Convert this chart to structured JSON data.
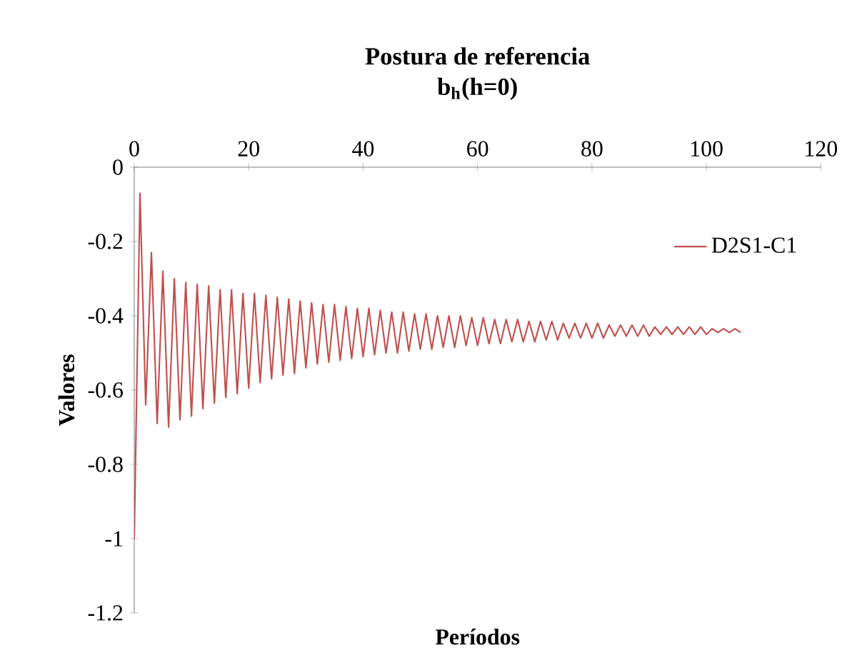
{
  "chart_data": {
    "type": "line",
    "title": "Postura de referencia",
    "subtitle": "b$_{h}$(h=0)",
    "xlabel": "Períodos",
    "ylabel": "Valores",
    "xlim": [
      0,
      120
    ],
    "xticks": [
      0,
      20,
      40,
      60,
      80,
      100,
      120
    ],
    "ylim": [
      -1.2,
      0
    ],
    "yticks": [
      -1.2,
      -1,
      -0.8,
      -0.6,
      -0.4,
      -0.2,
      0
    ],
    "legend": "top right",
    "x": [
      0,
      1,
      2,
      3,
      4,
      5,
      6,
      7,
      8,
      9,
      10,
      11,
      12,
      13,
      14,
      15,
      16,
      17,
      18,
      19,
      20,
      21,
      22,
      23,
      24,
      25,
      26,
      27,
      28,
      29,
      30,
      31,
      32,
      33,
      34,
      35,
      36,
      37,
      38,
      39,
      40,
      41,
      42,
      43,
      44,
      45,
      46,
      47,
      48,
      49,
      50,
      51,
      52,
      53,
      54,
      55,
      56,
      57,
      58,
      59,
      60,
      61,
      62,
      63,
      64,
      65,
      66,
      67,
      68,
      69,
      70,
      71,
      72,
      73,
      74,
      75,
      76,
      77,
      78,
      79,
      80,
      81,
      82,
      83,
      84,
      85,
      86,
      87,
      88,
      89,
      90,
      91,
      92,
      93,
      94,
      95,
      96,
      97,
      98,
      99,
      100,
      101,
      102,
      103,
      104,
      105,
      106
    ],
    "series": [
      {
        "name": "D2S1-C1",
        "color": "#c0504d",
        "values": [
          -1,
          -0.07,
          -0.64,
          -0.23,
          -0.69,
          -0.28,
          -0.7,
          -0.3,
          -0.68,
          -0.31,
          -0.67,
          -0.315,
          -0.65,
          -0.32,
          -0.635,
          -0.33,
          -0.62,
          -0.33,
          -0.61,
          -0.34,
          -0.595,
          -0.34,
          -0.58,
          -0.345,
          -0.57,
          -0.35,
          -0.56,
          -0.355,
          -0.555,
          -0.36,
          -0.54,
          -0.365,
          -0.53,
          -0.37,
          -0.525,
          -0.37,
          -0.52,
          -0.375,
          -0.515,
          -0.38,
          -0.51,
          -0.38,
          -0.505,
          -0.385,
          -0.5,
          -0.39,
          -0.5,
          -0.39,
          -0.495,
          -0.395,
          -0.49,
          -0.395,
          -0.49,
          -0.4,
          -0.485,
          -0.4,
          -0.485,
          -0.4,
          -0.48,
          -0.405,
          -0.48,
          -0.405,
          -0.475,
          -0.41,
          -0.475,
          -0.41,
          -0.47,
          -0.41,
          -0.47,
          -0.415,
          -0.47,
          -0.415,
          -0.465,
          -0.415,
          -0.465,
          -0.42,
          -0.46,
          -0.42,
          -0.46,
          -0.42,
          -0.46,
          -0.42,
          -0.46,
          -0.425,
          -0.455,
          -0.425,
          -0.455,
          -0.425,
          -0.455,
          -0.425,
          -0.455,
          -0.43,
          -0.45,
          -0.43,
          -0.45,
          -0.43,
          -0.45,
          -0.43,
          -0.45,
          -0.43,
          -0.45,
          -0.435,
          -0.445,
          -0.435,
          -0.445,
          -0.435,
          -0.445
        ]
      }
    ]
  }
}
